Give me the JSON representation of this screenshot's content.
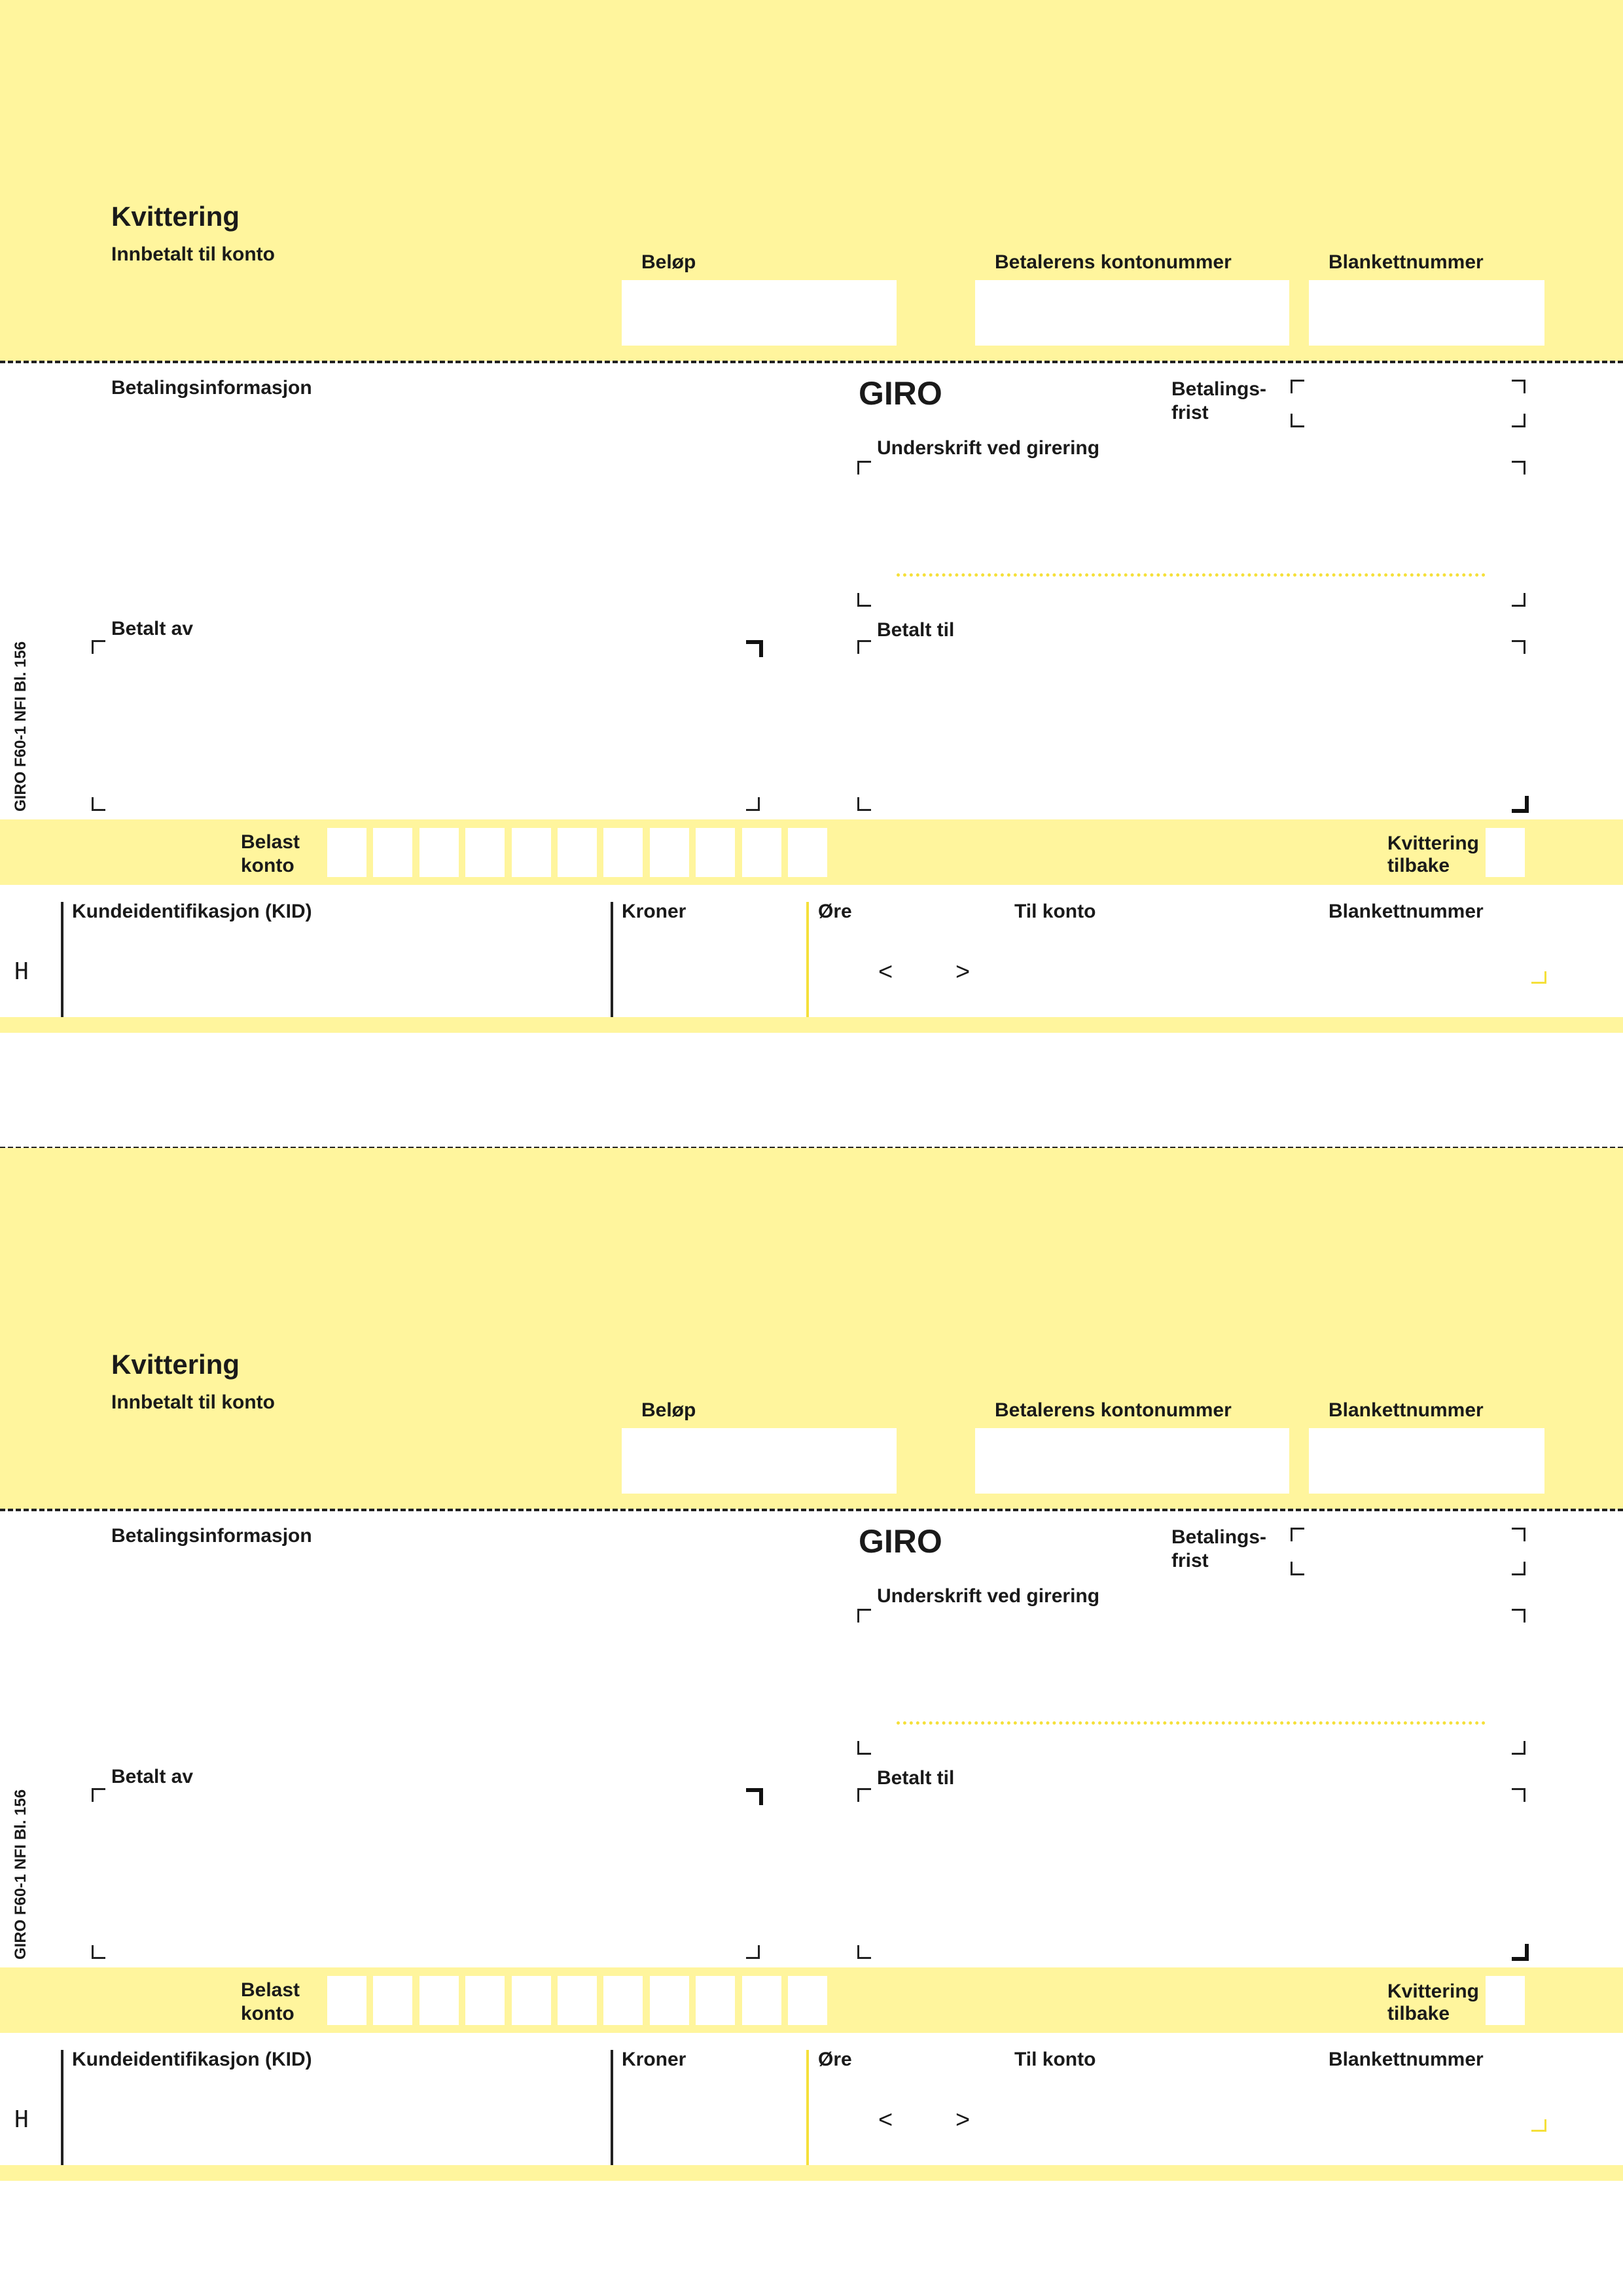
{
  "form": {
    "receipt_title": "Kvittering",
    "paid_to_account": "Innbetalt til konto",
    "amount": "Beløp",
    "payer_account": "Betalerens kontonummer",
    "form_number": "Blankettnummer",
    "payment_info": "Betalingsinformasjon",
    "giro": "GIRO",
    "due_line1": "Betalings-",
    "due_line2": "frist",
    "signature": "Underskrift ved girering",
    "paid_by": "Betalt av",
    "paid_to": "Betalt til",
    "debit_line1": "Belast",
    "debit_line2": "konto",
    "receipt_back_line1": "Kvittering",
    "receipt_back_line2": "tilbake",
    "kid": "Kundeidentifikasjon (KID)",
    "kroner": "Kroner",
    "ore": "Øre",
    "to_account": "Til konto",
    "form_number_bottom": "Blankettnummer",
    "side_text": "GIRO F60-1 NFI  Bl. 156",
    "h_mark": "H",
    "arrow_left": "<",
    "arrow_right": ">"
  },
  "colors": {
    "yellow": "#fff59d",
    "accent_yellow": "#f5e03a",
    "ink": "#1a1a1a"
  }
}
